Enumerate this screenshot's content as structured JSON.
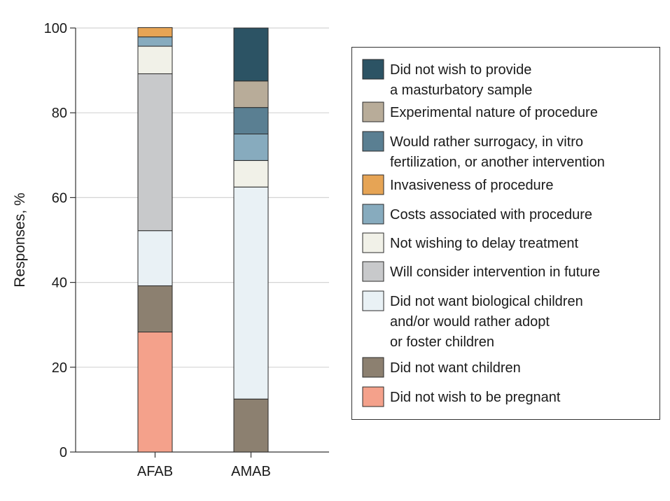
{
  "chart_data": {
    "type": "bar",
    "stacked": true,
    "title": "",
    "xlabel": "",
    "ylabel": "Responses, %",
    "ylim": [
      0,
      100
    ],
    "yticks": [
      0,
      20,
      40,
      60,
      80,
      100
    ],
    "grid": true,
    "legend_placement": "right",
    "categories": [
      "AFAB",
      "AMAB"
    ],
    "series": [
      {
        "name": "Did not wish to be pregnant",
        "color": "#f4a18b",
        "values": [
          28.3,
          0
        ]
      },
      {
        "name": "Did not want children",
        "color": "#8c8070",
        "values": [
          10.9,
          12.5
        ]
      },
      {
        "name": "Did not want biological children and/or would rather adopt or foster children",
        "color": "#e9f1f5",
        "values": [
          13.0,
          50.0
        ]
      },
      {
        "name": "Will consider intervention in future",
        "color": "#c8c9cb",
        "values": [
          37.0,
          0
        ]
      },
      {
        "name": "Not wishing to delay treatment",
        "color": "#f1f1e8",
        "values": [
          6.5,
          6.25
        ]
      },
      {
        "name": "Costs associated with procedure",
        "color": "#87abbe",
        "values": [
          2.2,
          6.25
        ]
      },
      {
        "name": "Invasiveness of procedure",
        "color": "#e6a455",
        "values": [
          2.2,
          0
        ]
      },
      {
        "name": "Would rather surrogacy, in vitro fertilization, or another intervention",
        "color": "#5a7f92",
        "values": [
          0,
          6.25
        ]
      },
      {
        "name": "Experimental nature of procedure",
        "color": "#b8ac99",
        "values": [
          0,
          6.25
        ]
      },
      {
        "name": "Did not wish to provide a masturbatory sample",
        "color": "#2c5364",
        "values": [
          0,
          12.5
        ]
      }
    ],
    "legend": [
      {
        "series": 9,
        "lines": [
          "Did not wish to provide",
          "a masturbatory sample"
        ]
      },
      {
        "series": 8,
        "lines": [
          "Experimental nature of procedure"
        ]
      },
      {
        "series": 7,
        "lines": [
          "Would rather surrogacy, in vitro",
          "fertilization, or another intervention"
        ]
      },
      {
        "series": 6,
        "lines": [
          "Invasiveness of procedure"
        ]
      },
      {
        "series": 5,
        "lines": [
          "Costs associated with procedure"
        ]
      },
      {
        "series": 4,
        "lines": [
          "Not wishing to delay treatment"
        ]
      },
      {
        "series": 3,
        "lines": [
          "Will consider intervention in future"
        ]
      },
      {
        "series": 2,
        "lines": [
          "Did not want biological children",
          "and/or would rather adopt",
          "or foster children"
        ]
      },
      {
        "series": 1,
        "lines": [
          "Did not want children"
        ]
      },
      {
        "series": 0,
        "lines": [
          "Did not wish to be pregnant"
        ]
      }
    ]
  }
}
